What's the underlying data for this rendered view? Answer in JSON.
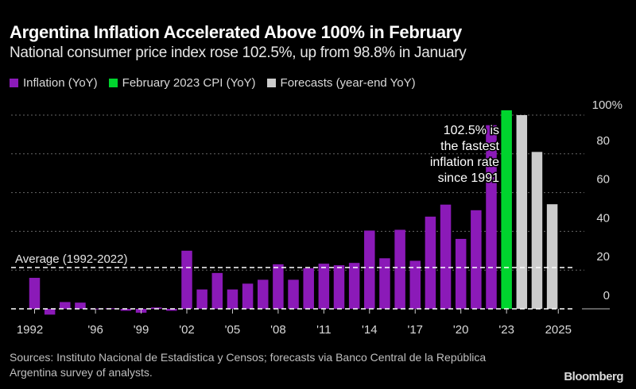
{
  "title": "Argentina Inflation Accelerated Above 100% in February",
  "subtitle": "National consumer price index rose 102.5%, up from 98.8% in January",
  "legend": [
    {
      "label": "Inflation (YoY)",
      "color": "#8B1AB8"
    },
    {
      "label": "February 2023 CPI (YoY)",
      "color": "#00D42E"
    },
    {
      "label": "Forecasts (year-end YoY)",
      "color": "#CCCCCC"
    }
  ],
  "source": "Sources: Instituto Nacional de Estadistica y Censos; forecasts via Banco Central de la República Argentina survey of analysts.",
  "brand": "Bloomberg",
  "chart_data": {
    "type": "bar",
    "title": "Argentina Inflation Accelerated Above 100% in February",
    "ylabel": "",
    "xlabel": "",
    "ylim": [
      -5,
      105
    ],
    "y_ticks": [
      0,
      20,
      40,
      60,
      80,
      100
    ],
    "y_tick_labels": [
      "0",
      "20",
      "40",
      "60",
      "80",
      "100%"
    ],
    "x_tick_labels": [
      {
        "pos": 1992,
        "label": "1992"
      },
      {
        "pos": 1996,
        "label": "'96"
      },
      {
        "pos": 1999,
        "label": "'99"
      },
      {
        "pos": 2002,
        "label": "'02"
      },
      {
        "pos": 2005,
        "label": "'05"
      },
      {
        "pos": 2008,
        "label": "'08"
      },
      {
        "pos": 2011,
        "label": "'11"
      },
      {
        "pos": 2014,
        "label": "'14"
      },
      {
        "pos": 2017,
        "label": "'17"
      },
      {
        "pos": 2020,
        "label": "'20"
      },
      {
        "pos": 2023,
        "label": "'23"
      },
      {
        "pos": 2026.4,
        "label": "2025"
      }
    ],
    "grid": true,
    "legend_position": "top-left",
    "series": [
      {
        "name": "Inflation (YoY)",
        "color": "#8B1AB8",
        "points": [
          {
            "x": 1992,
            "y": 16.0
          },
          {
            "x": 1993,
            "y": -3.0
          },
          {
            "x": 1994,
            "y": 3.5
          },
          {
            "x": 1995,
            "y": 3.2
          },
          {
            "x": 1996,
            "y": 0.1
          },
          {
            "x": 1997,
            "y": 0.3
          },
          {
            "x": 1998,
            "y": -1.0
          },
          {
            "x": 1999,
            "y": -2.0
          },
          {
            "x": 2000,
            "y": 0.7
          },
          {
            "x": 2001,
            "y": -1.0
          },
          {
            "x": 2002,
            "y": 30.0
          },
          {
            "x": 2003,
            "y": 10.0
          },
          {
            "x": 2004,
            "y": 18.5
          },
          {
            "x": 2005,
            "y": 10.0
          },
          {
            "x": 2006,
            "y": 13.0
          },
          {
            "x": 2007,
            "y": 15.0
          },
          {
            "x": 2008,
            "y": 23.0
          },
          {
            "x": 2009,
            "y": 15.0
          },
          {
            "x": 2010,
            "y": 21.0
          },
          {
            "x": 2011,
            "y": 23.3
          },
          {
            "x": 2012,
            "y": 22.5
          },
          {
            "x": 2013,
            "y": 23.7
          },
          {
            "x": 2014,
            "y": 40.4
          },
          {
            "x": 2015,
            "y": 26.1
          },
          {
            "x": 2016,
            "y": 40.8
          },
          {
            "x": 2017,
            "y": 24.8
          },
          {
            "x": 2018,
            "y": 47.6
          },
          {
            "x": 2019,
            "y": 53.8
          },
          {
            "x": 2020,
            "y": 36.1
          },
          {
            "x": 2021,
            "y": 50.9
          },
          {
            "x": 2022,
            "y": 94.8
          }
        ]
      },
      {
        "name": "February 2023 CPI (YoY)",
        "color": "#00D42E",
        "points": [
          {
            "x": 2023,
            "y": 102.5
          }
        ]
      },
      {
        "name": "Forecasts (year-end YoY)",
        "color": "#CCCCCC",
        "points": [
          {
            "x": 2024,
            "y": 100.0
          },
          {
            "x": 2025,
            "y": 81.0
          },
          {
            "x": 2026,
            "y": 54.0
          }
        ]
      }
    ],
    "reference_line": {
      "label": "Average (1992-2022)",
      "value": 21.3
    },
    "annotation": {
      "lines": [
        "102.5% is",
        "the fastest",
        "inflation rate",
        "since 1991"
      ]
    }
  }
}
